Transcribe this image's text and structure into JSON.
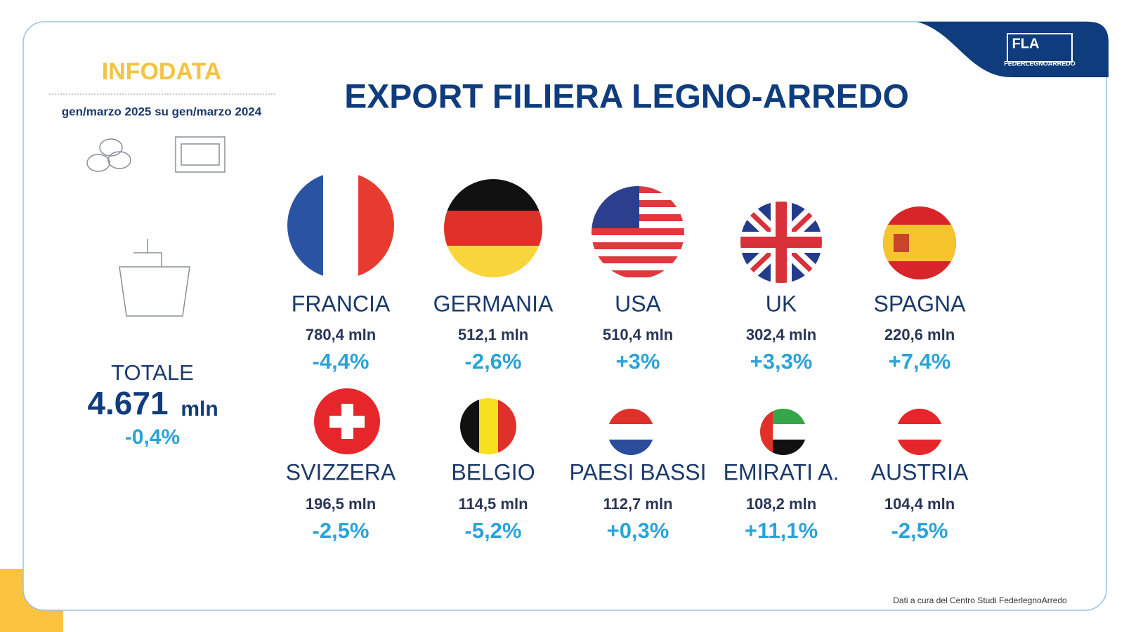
{
  "brand": {
    "label": "INFODATA",
    "period": "gen/marzo 2025 su gen/marzo 2024"
  },
  "logo": {
    "mark": "FLA",
    "name": "FEDERLEGNOARREDO"
  },
  "title": "EXPORT FILIERA LEGNO-ARREDO",
  "total": {
    "label": "TOTALE",
    "value": "4.671",
    "unit": "mln",
    "change": "-0,4%"
  },
  "countries": [
    {
      "name": "FRANCIA",
      "value": "780,4 mln",
      "change": "-4,4%"
    },
    {
      "name": "GERMANIA",
      "value": "512,1 mln",
      "change": "-2,6%"
    },
    {
      "name": "USA",
      "value": "510,4 mln",
      "change": "+3%"
    },
    {
      "name": "UK",
      "value": "302,4 mln",
      "change": "+3,3%"
    },
    {
      "name": "SPAGNA",
      "value": "220,6 mln",
      "change": "+7,4%"
    },
    {
      "name": "SVIZZERA",
      "value": "196,5 mln",
      "change": "-2,5%"
    },
    {
      "name": "BELGIO",
      "value": "114,5 mln",
      "change": "-5,2%"
    },
    {
      "name": "PAESI BASSI",
      "value": "112,7 mln",
      "change": "+0,3%"
    },
    {
      "name": "EMIRATI A.",
      "value": "108,2 mln",
      "change": "+11,1%"
    },
    {
      "name": "AUSTRIA",
      "value": "104,4 mln",
      "change": "-2,5%"
    }
  ],
  "source": "Dati a cura del Centro Studi FederlegnoArredo"
}
